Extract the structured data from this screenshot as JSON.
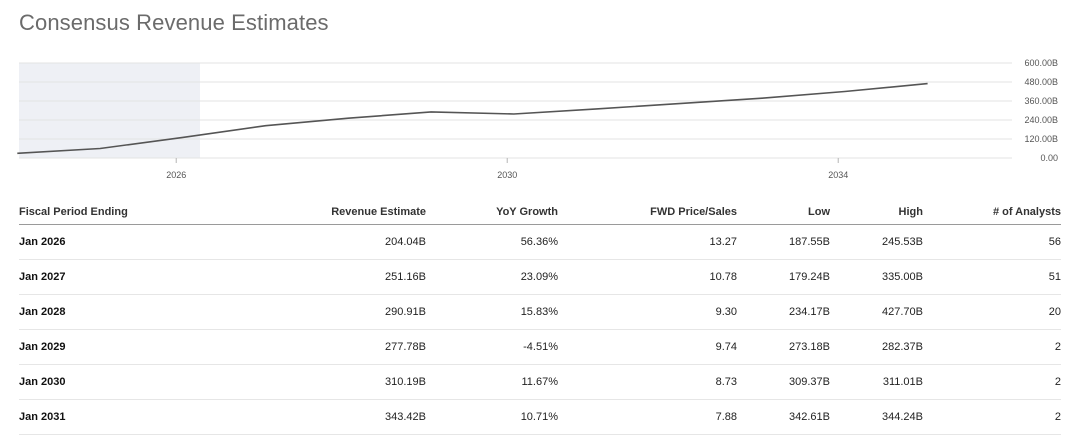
{
  "page": {
    "title": "Consensus Revenue Estimates"
  },
  "chart_data": {
    "type": "line",
    "title": "Consensus Revenue Estimates",
    "xlabel": "",
    "ylabel": "",
    "x": [
      2024.08,
      2025.08,
      2026.08,
      2027.08,
      2028.08,
      2029.08,
      2030.08,
      2031.08,
      2032.08,
      2033.08,
      2034.08,
      2035.08
    ],
    "x_ticks": [
      "2026",
      "2030",
      "2034"
    ],
    "x_tick_values": [
      2026,
      2030,
      2034
    ],
    "xlim": [
      2024.1,
      2036.1
    ],
    "y_ticks": [
      "600.00B",
      "480.00B",
      "360.00B",
      "240.00B",
      "120.00B",
      "0.00"
    ],
    "y_tick_values": [
      600,
      480,
      360,
      240,
      120,
      0
    ],
    "ylim": [
      0,
      600
    ],
    "series": [
      {
        "values": [
          30,
          60,
          130,
          204.04,
          251.16,
          290.91,
          277.78,
          310.19,
          343.42,
          378,
          420,
          470
        ]
      }
    ],
    "historical_shading": true,
    "grid": true,
    "colors": {
      "line": "#555555",
      "shade": "#eef0f5",
      "grid": "#e3e3e3"
    }
  },
  "table": {
    "headers": [
      "Fiscal Period Ending",
      "Revenue Estimate",
      "YoY Growth",
      "FWD Price/Sales",
      "Low",
      "High",
      "# of Analysts"
    ],
    "rows": [
      [
        "Jan 2026",
        "204.04B",
        "56.36%",
        "13.27",
        "187.55B",
        "245.53B",
        "56"
      ],
      [
        "Jan 2027",
        "251.16B",
        "23.09%",
        "10.78",
        "179.24B",
        "335.00B",
        "51"
      ],
      [
        "Jan 2028",
        "290.91B",
        "15.83%",
        "9.30",
        "234.17B",
        "427.70B",
        "20"
      ],
      [
        "Jan 2029",
        "277.78B",
        "-4.51%",
        "9.74",
        "273.18B",
        "282.37B",
        "2"
      ],
      [
        "Jan 2030",
        "310.19B",
        "11.67%",
        "8.73",
        "309.37B",
        "311.01B",
        "2"
      ],
      [
        "Jan 2031",
        "343.42B",
        "10.71%",
        "7.88",
        "342.61B",
        "344.24B",
        "2"
      ]
    ]
  }
}
